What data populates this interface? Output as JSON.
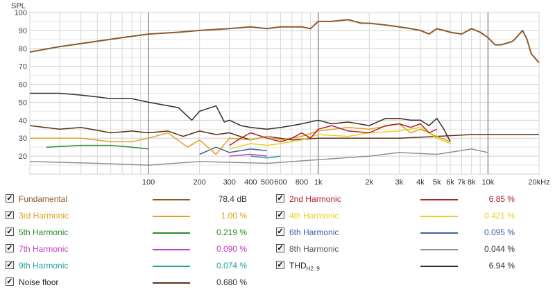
{
  "chart_data": {
    "type": "line",
    "ylabel": "SPL",
    "xscale": "log",
    "xlim": [
      20,
      20000
    ],
    "ylim": [
      10,
      100
    ],
    "grid": true,
    "yticks": [
      20,
      30,
      40,
      50,
      60,
      70,
      80,
      90,
      100
    ],
    "xticks": [
      {
        "v": 100,
        "label": "100"
      },
      {
        "v": 200,
        "label": "200"
      },
      {
        "v": 300,
        "label": "300"
      },
      {
        "v": 400,
        "label": "400"
      },
      {
        "v": 500,
        "label": "500"
      },
      {
        "v": 600,
        "label": "600"
      },
      {
        "v": 800,
        "label": "800"
      },
      {
        "v": 1000,
        "label": "1k"
      },
      {
        "v": 2000,
        "label": "2k"
      },
      {
        "v": 3000,
        "label": "3k"
      },
      {
        "v": 4000,
        "label": "4k"
      },
      {
        "v": 5000,
        "label": "5k"
      },
      {
        "v": 6000,
        "label": "6k"
      },
      {
        "v": 7000,
        "label": "7k"
      },
      {
        "v": 8000,
        "label": "8k"
      },
      {
        "v": 10000,
        "label": "10k"
      },
      {
        "v": 20000,
        "label": "20kHz"
      }
    ],
    "series": [
      {
        "name": "Fundamental",
        "color": "#8b5a2b",
        "value": "78.4 dB",
        "x": [
          20,
          30,
          50,
          70,
          100,
          150,
          200,
          300,
          400,
          500,
          600,
          700,
          800,
          900,
          1000,
          1200,
          1500,
          1800,
          2000,
          2500,
          3000,
          3500,
          4000,
          4500,
          5000,
          5500,
          6000,
          7000,
          8000,
          9000,
          10000,
          11000,
          12000,
          13000,
          14000,
          15000,
          16000,
          17000,
          18000,
          20000
        ],
        "y": [
          78,
          81,
          84,
          86,
          88,
          89,
          90,
          91,
          92,
          91,
          92,
          92,
          92,
          91,
          95,
          95,
          96,
          94,
          94,
          93,
          92,
          91,
          90,
          88,
          91,
          90,
          89,
          88,
          91,
          89,
          86,
          82,
          82,
          83,
          84,
          87,
          90,
          85,
          77,
          72
        ]
      },
      {
        "name": "2nd Harmonic",
        "color": "#b0202a",
        "value": "6.85 %",
        "x": [
          300,
          350,
          400,
          500,
          600,
          700,
          800,
          900,
          1000,
          1200,
          1500,
          2000,
          2500,
          3000,
          3500,
          4000,
          4500,
          5000
        ],
        "y": [
          26,
          30,
          33,
          30,
          28,
          30,
          33,
          30,
          35,
          37,
          34,
          33,
          37,
          38,
          36,
          38,
          33,
          35
        ]
      },
      {
        "name": "3rd Harmonic",
        "color": "#e0a020",
        "value": "1.00 %",
        "x": [
          20,
          40,
          60,
          80,
          100,
          130,
          170,
          200,
          250,
          300,
          400,
          500,
          600,
          800,
          1000,
          1500,
          2000,
          3000,
          3500,
          4000,
          5000,
          6000
        ],
        "y": [
          30,
          30,
          28,
          28,
          30,
          33,
          25,
          29,
          21,
          30,
          29,
          31,
          29,
          31,
          34,
          36,
          35,
          38,
          33,
          35,
          31,
          28
        ]
      },
      {
        "name": "4th Harmonic",
        "color": "#e8d020",
        "value": "0.421 %",
        "x": [
          300,
          400,
          500,
          600,
          800,
          1000,
          1500,
          2000,
          3000,
          4000,
          5000,
          6000
        ],
        "y": [
          24,
          27,
          26,
          27,
          29,
          32,
          31,
          33,
          34,
          36,
          30,
          27
        ]
      },
      {
        "name": "5th Harmonic",
        "color": "#2a8a2a",
        "value": "0.219 %",
        "x": [
          25,
          40,
          60,
          80,
          100
        ],
        "y": [
          25,
          26,
          26,
          25,
          24
        ]
      },
      {
        "name": "6th Harmonic",
        "color": "#3a60a0",
        "value": "0.095 %",
        "x": [
          200,
          250,
          300,
          400,
          500
        ],
        "y": [
          21,
          25,
          22,
          24,
          23
        ]
      },
      {
        "name": "7th Harmonic",
        "color": "#c040c0",
        "value": "0.090 %",
        "x": [
          300,
          400,
          500
        ],
        "y": [
          20,
          21,
          20
        ]
      },
      {
        "name": "8th Harmonic",
        "color": "#909090",
        "value": "0.044 %",
        "x": [
          20,
          50,
          100,
          200,
          500,
          1000,
          2000,
          3000,
          5000,
          8000,
          10000
        ],
        "y": [
          17,
          16,
          15,
          17,
          16,
          18,
          20,
          22,
          21,
          24,
          22
        ]
      },
      {
        "name": "9th Harmonic",
        "color": "#20a0a0",
        "value": "0.074 %",
        "x": [
          400,
          500,
          600
        ],
        "y": [
          20,
          19,
          20
        ]
      },
      {
        "name": "Noise floor",
        "color": "#5a3018",
        "value": "0.680 %",
        "x": [
          20,
          30,
          40,
          60,
          80,
          100,
          130,
          160,
          200,
          250,
          300,
          400,
          500,
          700,
          1000,
          1500,
          2000,
          3000,
          5000,
          8000,
          10000,
          15000,
          20000
        ],
        "y": [
          37,
          35,
          36,
          33,
          34,
          33,
          34,
          31,
          34,
          32,
          33,
          29,
          31,
          29,
          30,
          30,
          30,
          30,
          31,
          32,
          32,
          32,
          32
        ]
      },
      {
        "name": "THD",
        "color": "#3a2a20",
        "value": "6.94 %",
        "x": [
          20,
          30,
          40,
          50,
          60,
          80,
          100,
          150,
          180,
          200,
          250,
          280,
          300,
          350,
          400,
          500,
          600,
          700,
          800,
          1000,
          1200,
          1500,
          2000,
          2500,
          3000,
          3500,
          4000,
          4500,
          5000,
          5500,
          6000
        ],
        "y": [
          55,
          55,
          54,
          53,
          52,
          52,
          50,
          47,
          40,
          45,
          48,
          39,
          40,
          37,
          36,
          35,
          36,
          37,
          38,
          40,
          38,
          39,
          37,
          41,
          41,
          40,
          40,
          37,
          41,
          35,
          28
        ]
      }
    ]
  },
  "legend": {
    "items": [
      {
        "label": "Fundamental",
        "value": "78.4 dB"
      },
      {
        "label": "2nd Harmonic",
        "value": "6.85 %"
      },
      {
        "label": "3rd Harmonic",
        "value": "1.00 %"
      },
      {
        "label": "4th Harmonic",
        "value": "0.421 %"
      },
      {
        "label": "5th Harmonic",
        "value": "0.219 %"
      },
      {
        "label": "6th Harmonic",
        "value": "0.095 %"
      },
      {
        "label": "7th Harmonic",
        "value": "0.090 %"
      },
      {
        "label": "8th Harmonic",
        "value": "0.044 %"
      },
      {
        "label": "9th Harmonic",
        "value": "0.074 %"
      },
      {
        "label": "THD",
        "sub": "H2..9",
        "value": "6.94 %"
      },
      {
        "label": "Noise floor",
        "value": "0.680 %"
      }
    ],
    "check_glyph": "✓"
  }
}
